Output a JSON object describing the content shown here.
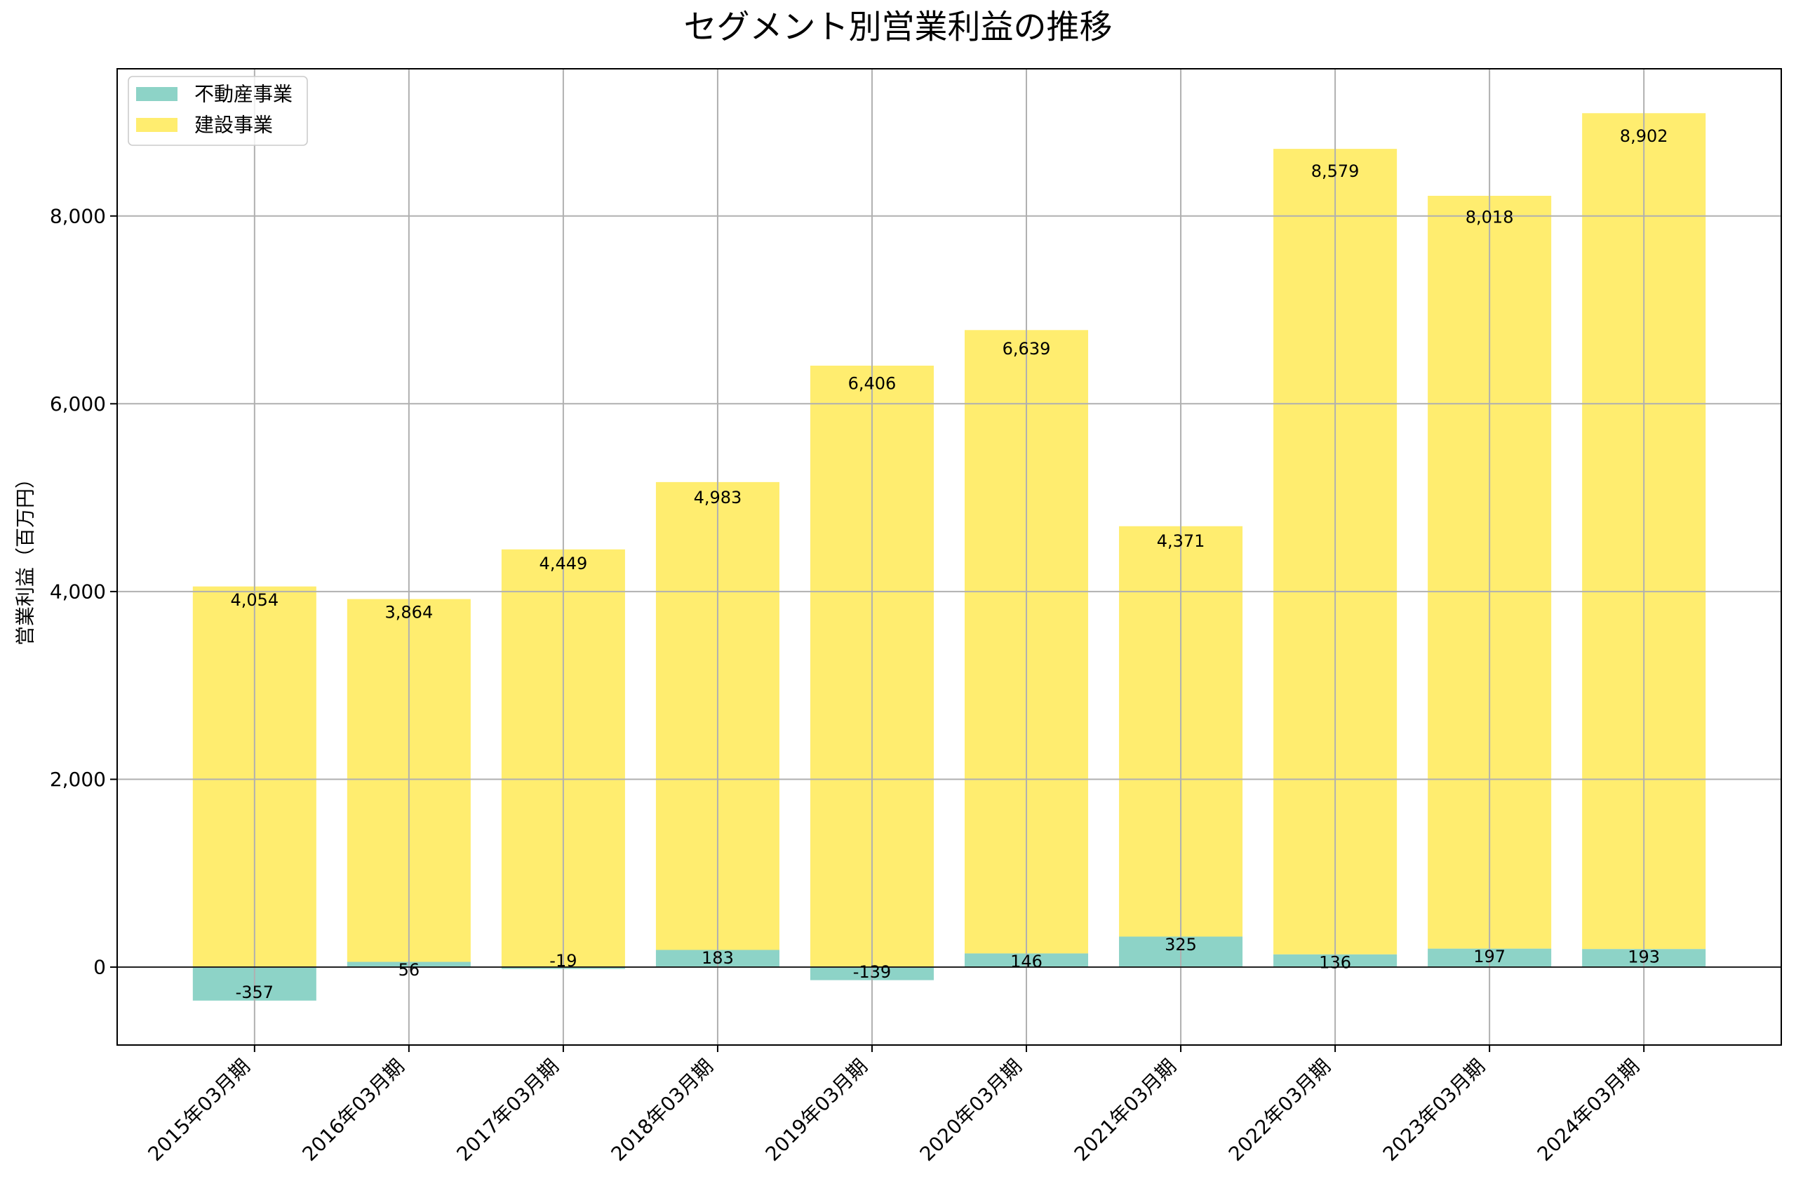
{
  "chart_data": {
    "type": "bar",
    "stacked": true,
    "title": "セグメント別営業利益の推移",
    "ylabel": "営業利益（百万円）",
    "categories": [
      "2015年03月期",
      "2016年03月期",
      "2017年03月期",
      "2018年03月期",
      "2019年03月期",
      "2020年03月期",
      "2021年03月期",
      "2022年03月期",
      "2023年03月期",
      "2024年03月期"
    ],
    "series": [
      {
        "name": "不動産事業",
        "color": "#8dd3c7",
        "values": [
          -357,
          56,
          -19,
          183,
          -139,
          146,
          325,
          136,
          197,
          193
        ],
        "labels": [
          "-357",
          "56",
          "-19",
          "183",
          "-139",
          "146",
          "325",
          "136",
          "197",
          "193"
        ]
      },
      {
        "name": "建設事業",
        "color": "#ffed6f",
        "values": [
          4054,
          3864,
          4449,
          4983,
          6406,
          6639,
          4371,
          8579,
          8018,
          8902
        ],
        "labels": [
          "4,054",
          "3,864",
          "4,449",
          "4,983",
          "6,406",
          "6,639",
          "4,371",
          "8,579",
          "8,018",
          "8,902"
        ]
      }
    ],
    "ylim": [
      -830,
      9568
    ],
    "yticks": [
      0,
      2000,
      4000,
      6000,
      8000
    ],
    "ytick_labels": [
      "0",
      "2,000",
      "4,000",
      "6,000",
      "8,000"
    ],
    "grid": true,
    "zero_line": true,
    "legend": "top-left"
  }
}
